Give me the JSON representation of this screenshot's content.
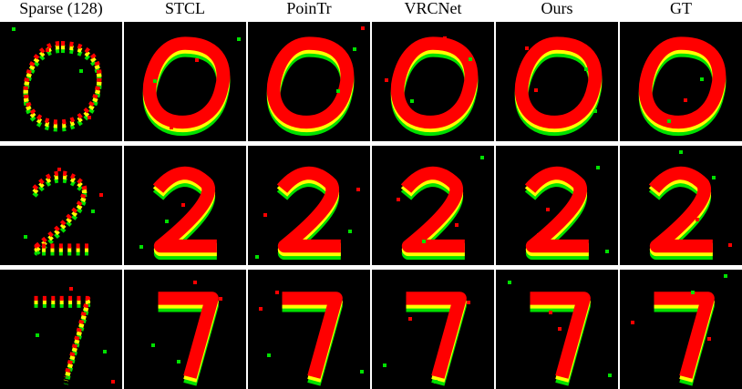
{
  "columns": [
    "Sparse (128)",
    "STCL",
    "PoinTr",
    "VRCNet",
    "Ours",
    "GT"
  ]
}
